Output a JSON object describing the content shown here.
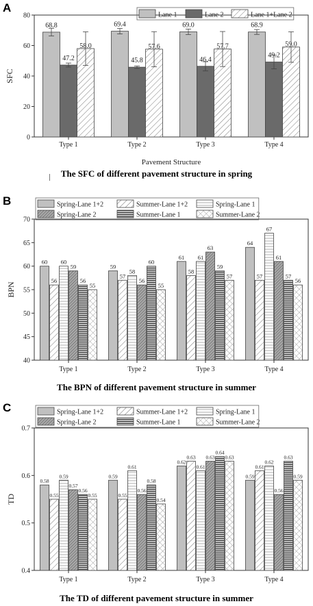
{
  "panels": [
    {
      "letter": "A",
      "caption": "The SFC of different pavement structure in spring",
      "chart_data": {
        "type": "bar",
        "title": "",
        "xlabel": "Pavement Structure",
        "ylabel": "SFC",
        "ylim": [
          0,
          80
        ],
        "yticks": [
          "0",
          "20",
          "40",
          "60",
          "80"
        ],
        "categories": [
          "Type 1",
          "Type 2",
          "Type 3",
          "Type 4"
        ],
        "legend_position": "top-right",
        "series": [
          {
            "name": "Lane 1",
            "values": [
              68.8,
              69.4,
              69.0,
              68.9
            ],
            "labels": [
              "68.8",
              "69.4",
              "69.0",
              "68.9"
            ],
            "errors": [
              2.5,
              1.8,
              1.8,
              1.6
            ],
            "fill": "#c0c0c0",
            "pattern": "solid"
          },
          {
            "name": "Lane 2",
            "values": [
              47.2,
              45.8,
              46.4,
              49.2
            ],
            "labels": [
              "47.2",
              "45.8",
              "46.4",
              "49.2"
            ],
            "errors": [
              1.3,
              0.8,
              3.0,
              4.5
            ],
            "fill": "#6a6a6a",
            "pattern": "solid"
          },
          {
            "name": "Lane 1+Lane 2",
            "values": [
              58.0,
              57.6,
              57.7,
              59.0
            ],
            "labels": [
              "58.0",
              "57.6",
              "57.7",
              "59.0"
            ],
            "errors": [
              11.0,
              11.5,
              11.5,
              10.0
            ],
            "fill": "#ffffff",
            "pattern": "diagonal"
          }
        ]
      }
    },
    {
      "letter": "B",
      "caption": "The BPN of different pavement structure in summer",
      "chart_data": {
        "type": "bar",
        "title": "",
        "xlabel": "",
        "ylabel": "BPN",
        "ylim": [
          40,
          70
        ],
        "yticks": [
          "40",
          "45",
          "50",
          "55",
          "60",
          "65",
          "70"
        ],
        "categories": [
          "Type 1",
          "Type 2",
          "Type 3",
          "Type 4"
        ],
        "legend_position": "top",
        "series": [
          {
            "name": "Spring-Lane 1+2",
            "values": [
              60,
              59,
              61,
              64
            ],
            "labels": [
              "60",
              "59",
              "61",
              "64"
            ],
            "fill": "#c0c0c0",
            "pattern": "solid"
          },
          {
            "name": "Summer-Lane 1+2",
            "values": [
              56,
              57,
              58,
              57
            ],
            "labels": [
              "56",
              "57",
              "58",
              "57"
            ],
            "fill": "#ffffff",
            "pattern": "diagonal"
          },
          {
            "name": "Spring-Lane 1",
            "values": [
              60,
              58,
              61,
              67
            ],
            "labels": [
              "60",
              "58",
              "61",
              "67"
            ],
            "fill": "#ffffff",
            "pattern": "hlines-light"
          },
          {
            "name": "Spring-Lane 2",
            "values": [
              59,
              56,
              63,
              61
            ],
            "labels": [
              "59",
              "56",
              "63",
              "61"
            ],
            "fill": "#909090",
            "pattern": "dense-diagonal"
          },
          {
            "name": "Summer-Lane 1",
            "values": [
              56,
              60,
              59,
              57
            ],
            "labels": [
              "56",
              "60",
              "59",
              "57"
            ],
            "fill": "#8a8a8a",
            "pattern": "hlines-dark"
          },
          {
            "name": "Summer-Lane 2",
            "values": [
              55,
              55,
              57,
              56
            ],
            "labels": [
              "55",
              "55",
              "57",
              "56"
            ],
            "fill": "#ffffff",
            "pattern": "crosshatch"
          }
        ]
      }
    },
    {
      "letter": "C",
      "caption": "The TD of different pavement structure in summer",
      "chart_data": {
        "type": "bar",
        "title": "",
        "xlabel": "",
        "ylabel": "TD",
        "ylim": [
          0.4,
          0.7
        ],
        "yticks": [
          "0.4",
          "0.5",
          "0.6",
          "0.7"
        ],
        "categories": [
          "Type 1",
          "Type 2",
          "Type 3",
          "Type 4"
        ],
        "legend_position": "top",
        "series": [
          {
            "name": "Spring-Lane 1+2",
            "values": [
              0.58,
              0.59,
              0.62,
              0.59
            ],
            "labels": [
              "0.58",
              "0.59",
              "0.62",
              "0.59"
            ],
            "fill": "#c0c0c0",
            "pattern": "solid"
          },
          {
            "name": "Summer-Lane 1+2",
            "values": [
              0.55,
              0.55,
              0.63,
              0.61
            ],
            "labels": [
              "0.55",
              "0.55",
              "0.63",
              "0.61"
            ],
            "fill": "#ffffff",
            "pattern": "diagonal"
          },
          {
            "name": "Spring-Lane 1",
            "values": [
              0.59,
              0.61,
              0.61,
              0.62
            ],
            "labels": [
              "0.59",
              "0.61",
              "0.61",
              "0.62"
            ],
            "fill": "#ffffff",
            "pattern": "hlines-light"
          },
          {
            "name": "Spring-Lane 2",
            "values": [
              0.57,
              0.56,
              0.63,
              0.56
            ],
            "labels": [
              "0.57",
              "0.56",
              "0.63",
              "0.56"
            ],
            "fill": "#909090",
            "pattern": "dense-diagonal"
          },
          {
            "name": "Summer-Lane 1",
            "values": [
              0.56,
              0.58,
              0.64,
              0.63
            ],
            "labels": [
              "0.56",
              "0.58",
              "0.64",
              "0.63"
            ],
            "fill": "#8a8a8a",
            "pattern": "hlines-dark"
          },
          {
            "name": "Summer-Lane 2",
            "values": [
              0.55,
              0.54,
              0.63,
              0.59
            ],
            "labels": [
              "0.55",
              "0.54",
              "0.63",
              "0.59"
            ],
            "fill": "#ffffff",
            "pattern": "crosshatch"
          }
        ]
      }
    }
  ]
}
